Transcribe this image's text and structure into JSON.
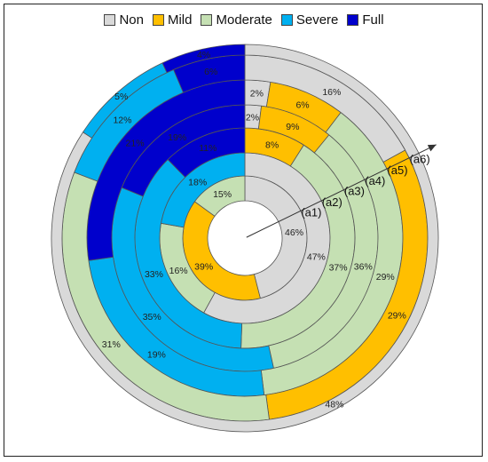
{
  "chart_data": {
    "type": "pie",
    "subtype": "multi-ring donut",
    "legend": {
      "placement": "top",
      "entries": [
        {
          "name": "Non",
          "color": "#d9d9d9"
        },
        {
          "name": "Mild",
          "color": "#ffbf00"
        },
        {
          "name": "Moderate",
          "color": "#c5e0b3"
        },
        {
          "name": "Severe",
          "color": "#00b0f0"
        },
        {
          "name": "Full",
          "color": "#0000cc"
        }
      ]
    },
    "categories": [
      "Non",
      "Mild",
      "Moderate",
      "Severe",
      "Full"
    ],
    "rings": [
      {
        "name": "(a1)",
        "values": [
          46,
          39,
          15,
          0,
          0
        ],
        "labels": [
          "46%",
          "39%",
          "15%",
          "",
          ""
        ]
      },
      {
        "name": "(a2)",
        "values": [
          47,
          0,
          16,
          18,
          0
        ],
        "labels": [
          "47%",
          "",
          "16%",
          "18%",
          ""
        ]
      },
      {
        "name": "(a3)",
        "values": [
          0,
          8,
          37,
          33,
          11
        ],
        "labels": [
          "",
          "8%",
          "37%",
          "33%",
          "11%"
        ]
      },
      {
        "name": "(a4)",
        "values": [
          2,
          9,
          36,
          35,
          19
        ],
        "labels": [
          "2%",
          "9%",
          "36%",
          "35%",
          "19%"
        ]
      },
      {
        "name": "(a5)",
        "values": [
          2,
          6,
          29,
          19,
          21
        ],
        "labels": [
          "2%",
          "6%",
          "29%",
          "19%",
          "21%"
        ]
      },
      {
        "name": "(a6)",
        "values": [
          16,
          29,
          31,
          12,
          6
        ],
        "labels": [
          "16%",
          "29%",
          "31%",
          "12%",
          "6%"
        ]
      }
    ],
    "outer_ring": {
      "values": [
        48,
        0,
        0,
        5,
        4
      ],
      "labels": [
        "48%",
        "",
        "",
        "5%",
        "4%"
      ]
    },
    "ring_labels": [
      "(a1)",
      "(a2)",
      "(a3)",
      "(a4)",
      "(a5)",
      "(a6)"
    ]
  }
}
